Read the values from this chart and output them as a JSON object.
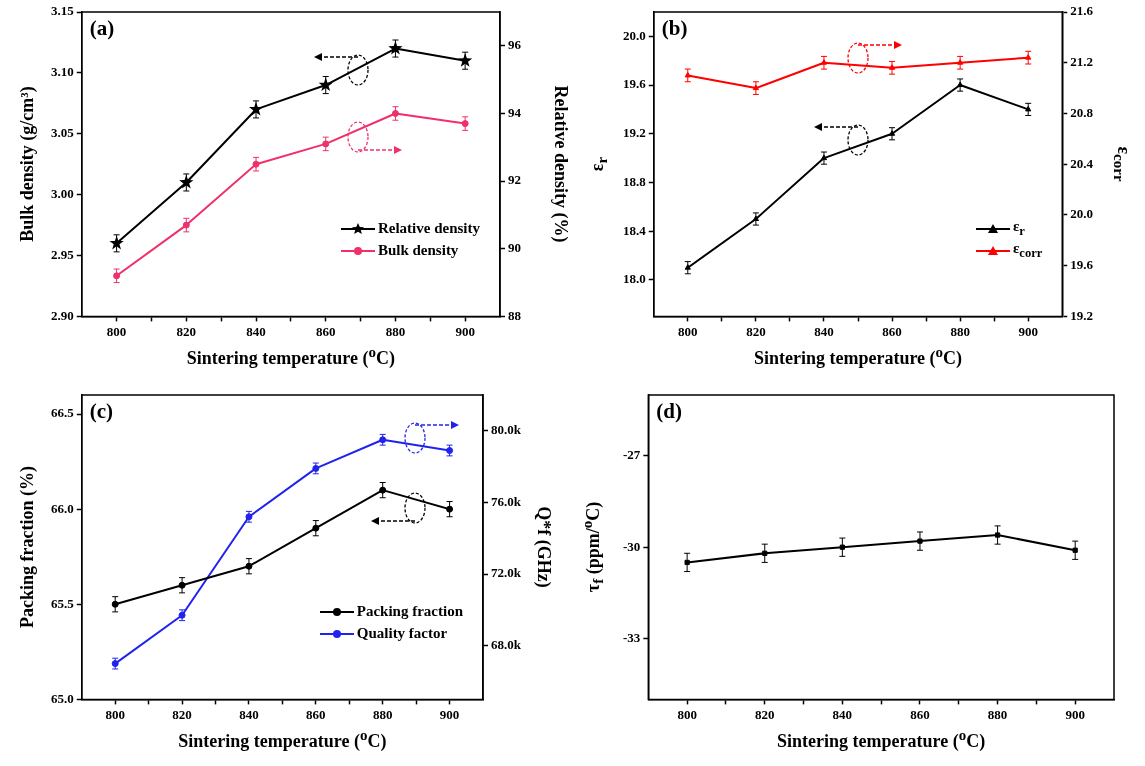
{
  "chart_data": [
    {
      "type": "line",
      "title": "(a)",
      "xlabel": "Sintering temperature ($^{o}$C)",
      "ylabel": "Bulk density (g/cm³)",
      "y2label": "Relative density (%)",
      "x": [
        800,
        820,
        840,
        860,
        880,
        900
      ],
      "xlim": [
        790,
        910
      ],
      "xticks": [
        800,
        {
          "value": 810,
          "label": null
        },
        820,
        {
          "value": 830,
          "label": null
        },
        840,
        {
          "value": 850,
          "label": null
        },
        860,
        {
          "value": 870,
          "label": null
        },
        880,
        {
          "value": 890,
          "label": null
        },
        900
      ],
      "ylim": [
        2.9,
        3.15
      ],
      "yticks": [
        {
          "value": 2.9,
          "label": "2.90"
        },
        2.95,
        {
          "value": 3.0,
          "label": "3.00"
        },
        3.05,
        {
          "value": 3.1,
          "label": "3.10"
        },
        3.15
      ],
      "y2lim": [
        88,
        97
      ],
      "y2ticks": [
        88,
        90,
        92,
        94,
        96
      ],
      "legend": "bottom right",
      "series": [
        {
          "name": "Relative density",
          "color": "#000000",
          "marker": "star",
          "values": [
            2.96,
            3.01,
            3.07,
            3.09,
            3.12,
            3.11
          ],
          "errors": [
            0.007,
            0.007,
            0.007,
            0.007,
            0.007,
            0.007
          ]
        },
        {
          "name": "Bulk density",
          "color": "#f0306a",
          "marker": "circle",
          "axis": "y2",
          "values": [
            89.2,
            90.7,
            92.5,
            93.1,
            94.0,
            93.7
          ],
          "errors": [
            0.2,
            0.2,
            0.2,
            0.2,
            0.2,
            0.2
          ]
        }
      ]
    },
    {
      "type": "line",
      "title": "(b)",
      "xlabel": "Sintering temperature ($^{o}$C)",
      "ylabel": "ε$_{r}$",
      "y2label": "ε$_{corr}$",
      "x": [
        800,
        820,
        840,
        860,
        880,
        900
      ],
      "xlim": [
        790,
        910
      ],
      "xticks": [
        800,
        {
          "value": 810,
          "label": null
        },
        820,
        {
          "value": 830,
          "label": null
        },
        840,
        {
          "value": 850,
          "label": null
        },
        860,
        {
          "value": 870,
          "label": null
        },
        880,
        {
          "value": 890,
          "label": null
        },
        900
      ],
      "ylim": [
        17.7,
        20.2
      ],
      "yticks": [
        {
          "value": 18.0,
          "label": "18.0"
        },
        18.4,
        18.8,
        19.2,
        19.6,
        {
          "value": 20.0,
          "label": "20.0"
        }
      ],
      "y2lim": [
        19.2,
        21.6
      ],
      "y2ticks": [
        19.2,
        19.6,
        {
          "value": 20.0,
          "label": "20.0"
        },
        20.4,
        20.8,
        21.2,
        21.6
      ],
      "legend": "bottom right",
      "series": [
        {
          "name": "ε$_{r}$",
          "color": "#000000",
          "marker": "triangle",
          "values": [
            18.1,
            18.5,
            19.0,
            19.2,
            19.6,
            19.4
          ],
          "errors": [
            0.05,
            0.05,
            0.05,
            0.05,
            0.05,
            0.05
          ]
        },
        {
          "name": "ε$_{corr}$",
          "color": "#ff0000",
          "marker": "triangle",
          "axis": "y2",
          "values": [
            21.1,
            21.0,
            21.2,
            21.16,
            21.2,
            21.24
          ],
          "errors": [
            0.05,
            0.05,
            0.05,
            0.05,
            0.05,
            0.05
          ]
        }
      ]
    },
    {
      "type": "line",
      "title": "(c)",
      "xlabel": "Sintering temperature ($^{o}$C)",
      "ylabel": "Packing fraction (%)",
      "y2label": "Q*f (GHz)",
      "x": [
        800,
        820,
        840,
        860,
        880,
        900
      ],
      "xlim": [
        790,
        910
      ],
      "xticks": [
        800,
        {
          "value": 810,
          "label": null
        },
        820,
        {
          "value": 830,
          "label": null
        },
        840,
        {
          "value": 850,
          "label": null
        },
        860,
        {
          "value": 870,
          "label": null
        },
        880,
        {
          "value": 890,
          "label": null
        },
        900
      ],
      "ylim": [
        65.0,
        66.6
      ],
      "yticks": [
        {
          "value": 65.0,
          "label": "65.0"
        },
        65.5,
        {
          "value": 66.0,
          "label": "66.0"
        },
        66.5
      ],
      "y2lim": [
        65000,
        82000
      ],
      "y2ticks": [
        {
          "value": 68000,
          "label": "68.0k"
        },
        {
          "value": 72000,
          "label": "72.0k"
        },
        {
          "value": 76000,
          "label": "76.0k"
        },
        {
          "value": 80000,
          "label": "80.0k"
        }
      ],
      "legend": "bottom right",
      "series": [
        {
          "name": "Packing fraction",
          "color": "#000000",
          "marker": "circle",
          "values": [
            65.5,
            65.6,
            65.7,
            65.9,
            66.1,
            66.0
          ],
          "errors": [
            0.04,
            0.04,
            0.04,
            0.04,
            0.04,
            0.04
          ]
        },
        {
          "name": "Quality factor",
          "color": "#2222ee",
          "marker": "circle",
          "axis": "y2",
          "values": [
            67000,
            69700,
            75200,
            77900,
            79500,
            78900
          ],
          "errors": [
            300,
            300,
            300,
            300,
            300,
            300
          ]
        }
      ]
    },
    {
      "type": "line",
      "title": "(d)",
      "xlabel": "Sintering temperature ($^{o}$C)",
      "ylabel": "τ$_{f}$ (ppm/$^{o}$C)",
      "x": [
        800,
        820,
        840,
        860,
        880,
        900
      ],
      "xlim": [
        790,
        910
      ],
      "xticks": [
        800,
        {
          "value": 810,
          "label": null
        },
        820,
        {
          "value": 830,
          "label": null
        },
        840,
        {
          "value": 850,
          "label": null
        },
        860,
        {
          "value": 870,
          "label": null
        },
        880,
        {
          "value": 890,
          "label": null
        },
        900
      ],
      "ylim": [
        -35,
        -25
      ],
      "yticks": [
        -33,
        -30,
        -27
      ],
      "series": [
        {
          "color": "#000000",
          "marker": "square",
          "values": [
            -30.5,
            -30.2,
            -30.0,
            -29.8,
            -29.6,
            -30.1
          ],
          "errors": [
            0.3,
            0.3,
            0.3,
            0.3,
            0.3,
            0.3
          ]
        }
      ]
    }
  ]
}
